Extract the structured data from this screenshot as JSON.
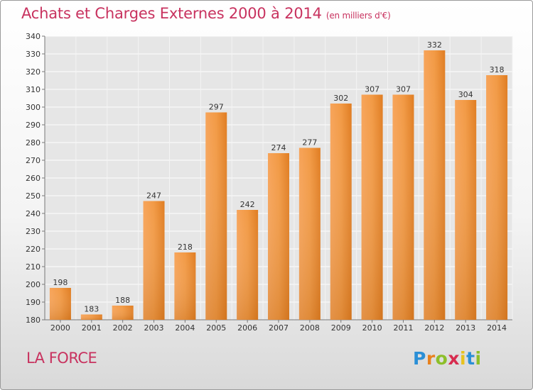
{
  "header": {
    "title": "Achats et Charges Externes 2000 à 2014",
    "unit": "(en milliers d'€)"
  },
  "footer": {
    "commune": "LA FORCE",
    "logo": {
      "letters": [
        "P",
        "r",
        "o",
        "x",
        "i",
        "t",
        "i"
      ],
      "colors": [
        "#2a8fd6",
        "#e8821e",
        "#8dbf2a",
        "#d72c4f",
        "#e8c21e",
        "#2a8fd6",
        "#8dbf2a"
      ]
    }
  },
  "chart_data": {
    "type": "bar",
    "title": "Achats et Charges Externes 2000 à 2014",
    "xlabel": "",
    "ylabel": "",
    "categories": [
      "2000",
      "2001",
      "2002",
      "2003",
      "2004",
      "2005",
      "2006",
      "2007",
      "2008",
      "2009",
      "2010",
      "2011",
      "2012",
      "2013",
      "2014"
    ],
    "values": [
      198,
      183,
      188,
      247,
      218,
      297,
      242,
      274,
      277,
      302,
      307,
      307,
      332,
      304,
      318
    ],
    "ylim": [
      180,
      340
    ],
    "yticks": [
      180,
      190,
      200,
      210,
      220,
      230,
      240,
      250,
      260,
      270,
      280,
      290,
      300,
      310,
      320,
      330,
      340
    ],
    "grid": true,
    "bar_color": "#f0913a"
  }
}
